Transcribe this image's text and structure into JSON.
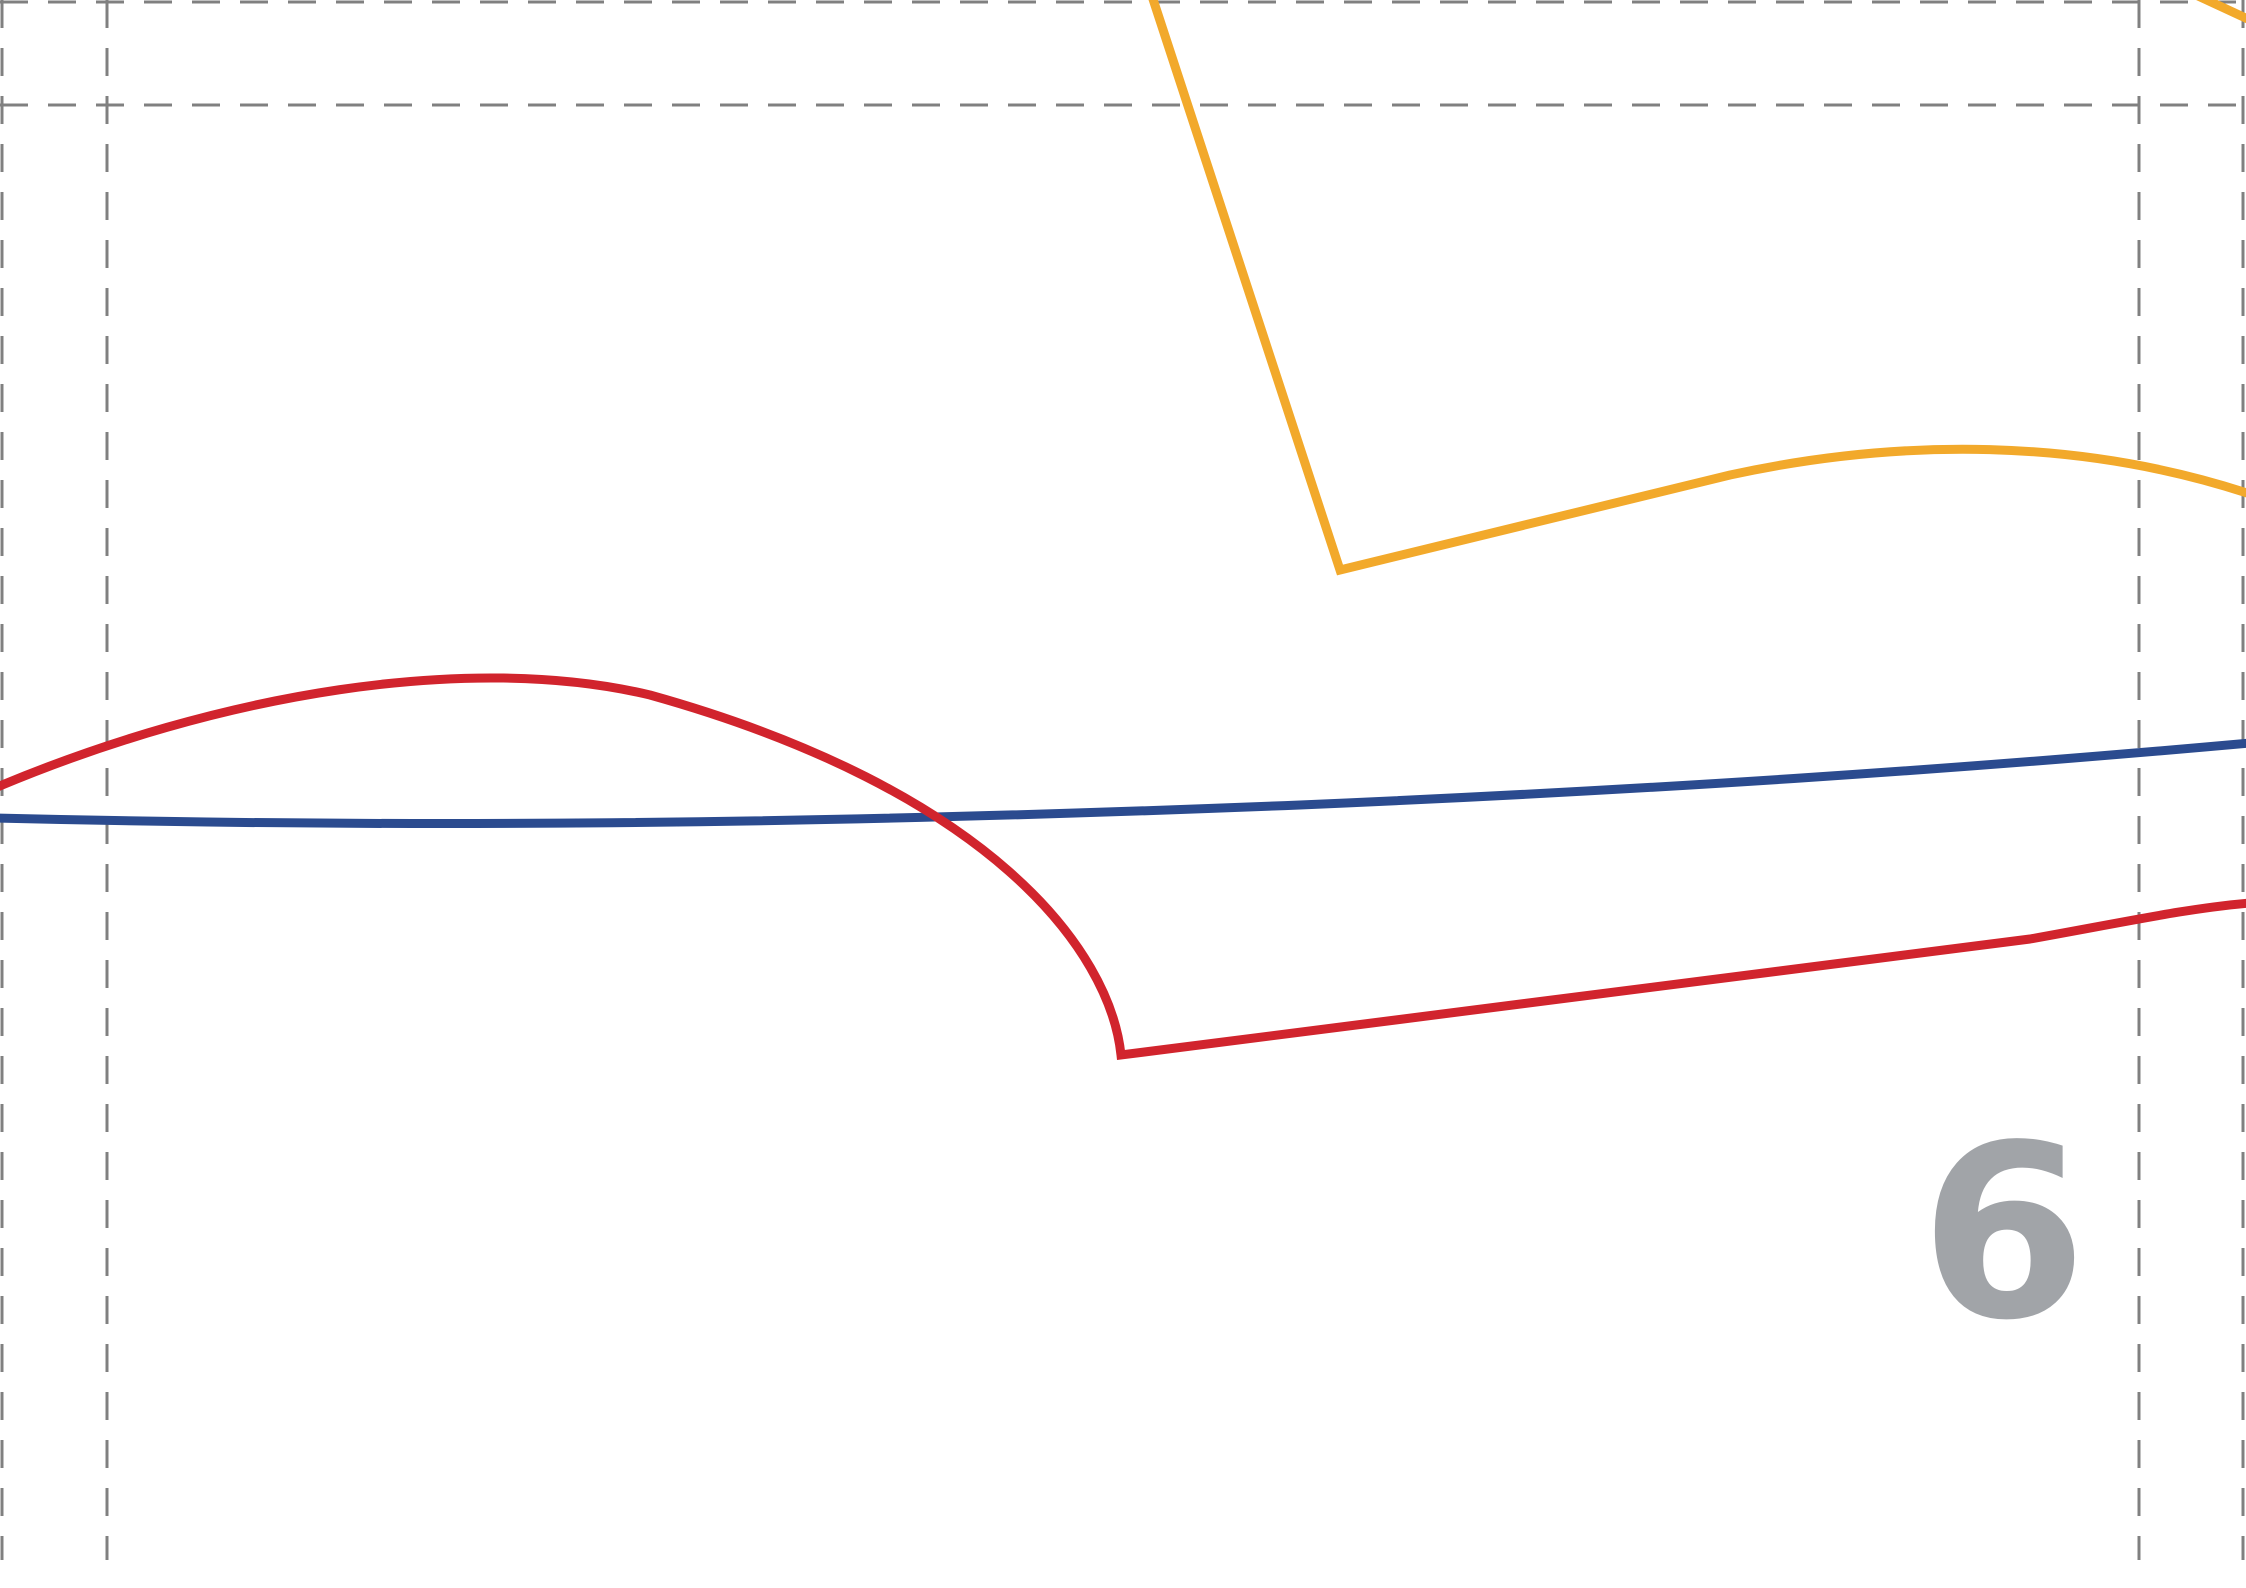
{
  "chart_data": {
    "type": "line",
    "title": "",
    "xlabel": "",
    "ylabel": "",
    "grid": true,
    "panel_label": "6",
    "series": [
      {
        "color": "#f2a92b"
      },
      {
        "color": "#2b4b8f"
      },
      {
        "color": "#d1242d"
      }
    ]
  }
}
